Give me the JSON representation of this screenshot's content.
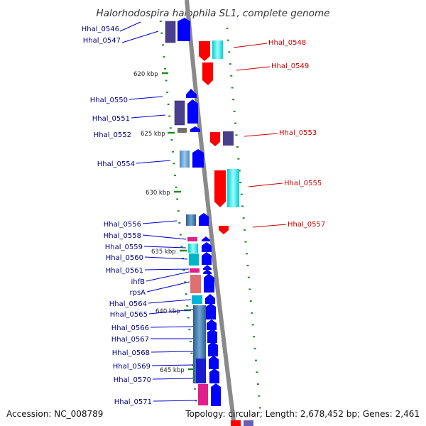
{
  "title": "Halorhodospira halophila SL1, complete genome",
  "footer": {
    "accession": "Accession: NC_008789",
    "stats": "Topology: circular; Length: 2,678,452 bp; Genes: 2,461"
  },
  "scale_labels": [
    "620 kbp",
    "625 kbp",
    "630 kbp",
    "635 kbp",
    "640 kbp",
    "645 kbp"
  ],
  "genes_left": [
    "Hhal_0546",
    "Hhal_0547",
    "Hhal_0550",
    "Hhal_0551",
    "Hhal_0552",
    "Hhal_0554",
    "Hhal_0556",
    "Hhal_0558",
    "Hhal_0559",
    "Hhal_0560",
    "Hhal_0561",
    "ihfB",
    "rpsA",
    "Hhal_0564",
    "Hhal_0565",
    "Hhal_0566",
    "Hhal_0567",
    "Hhal_0568",
    "Hhal_0569",
    "Hhal_0570",
    "Hhal_0571"
  ],
  "genes_right": [
    "Hhal_0548",
    "Hhal_0549",
    "Hhal_0553",
    "Hhal_0555",
    "Hhal_0557"
  ],
  "colors": {
    "backbone": "#8a8a8a",
    "forward_gene": "#0000ff",
    "reverse_gene": "#ff0000",
    "left_label": "#000080",
    "right_label": "#cc0000",
    "tick": "#228b22"
  }
}
